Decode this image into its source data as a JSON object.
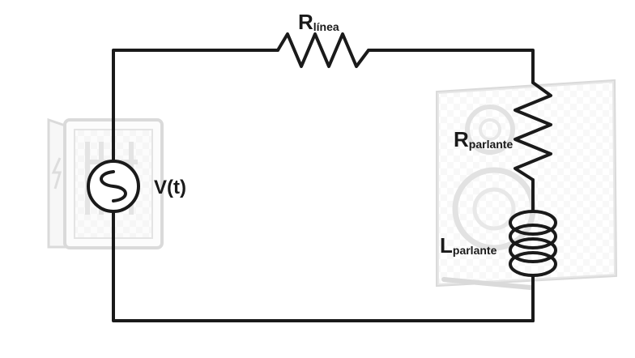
{
  "labels": {
    "r_linea": {
      "main": "R",
      "sub": "línea"
    },
    "r_parlante": {
      "main": "R",
      "sub": "parlante"
    },
    "l_parlante": {
      "main": "L",
      "sub": "parlante"
    },
    "source": "V(t)"
  },
  "colors": {
    "wire": "#1a1a1a",
    "faded_outline": "#c8c8c8",
    "faded_fill": "#f4f4f4"
  },
  "icons": [
    "electrical-panel-icon",
    "speaker-cabinet-icon",
    "ac-source-icon",
    "resistor-icon",
    "inductor-icon"
  ]
}
